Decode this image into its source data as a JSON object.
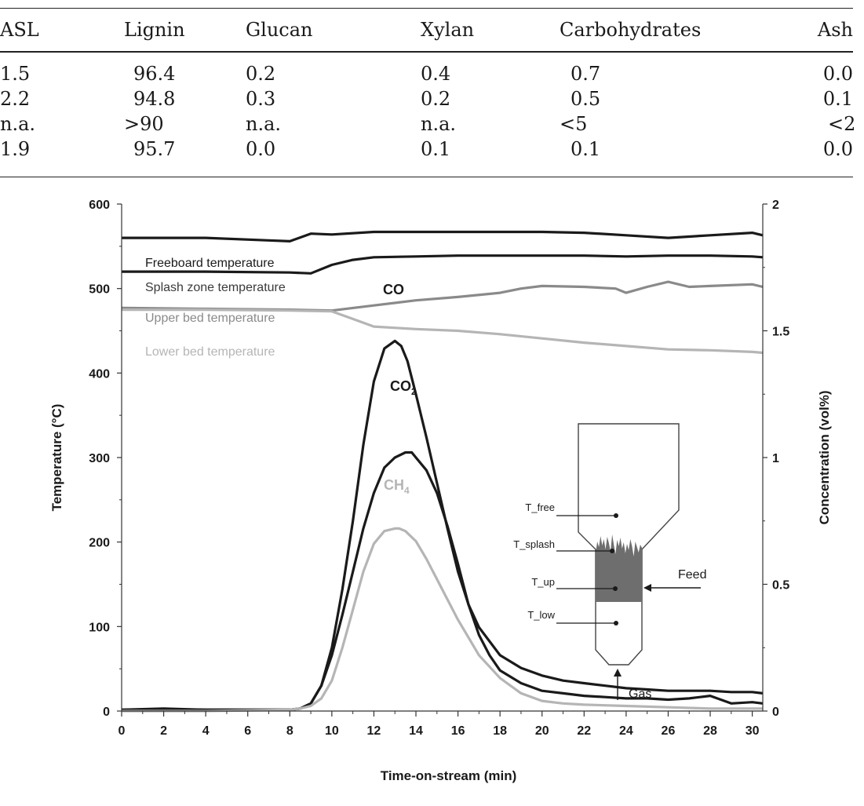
{
  "table": {
    "headers": [
      "ASL",
      "Lignin",
      "Glucan",
      "Xylan",
      "Carbohydrates",
      "Ash"
    ],
    "rows": [
      [
        "1.5",
        "96.4",
        "0.2",
        "0.4",
        "0.7",
        "0.0"
      ],
      [
        "2.2",
        "94.8",
        "0.3",
        "0.2",
        "0.5",
        "0.1"
      ],
      [
        "n.a.",
        ">90",
        "n.a.",
        "n.a.",
        "<5",
        "<2"
      ],
      [
        "1.9",
        "95.7",
        "0.0",
        "0.1",
        "0.1",
        "0.0"
      ]
    ]
  },
  "chart_data": {
    "type": "line",
    "title": "",
    "xlabel": "Time-on-stream (min)",
    "ylabel": "Temperature (°C)",
    "y2label": "Concentration (vol%)",
    "xlim": [
      0,
      30.5
    ],
    "ylim": [
      0,
      600
    ],
    "y2lim": [
      0,
      2
    ],
    "x_ticks": [
      0,
      2,
      4,
      6,
      8,
      10,
      12,
      14,
      16,
      18,
      20,
      22,
      24,
      26,
      28,
      30
    ],
    "y_ticks": [
      0,
      100,
      200,
      300,
      400,
      500,
      600
    ],
    "y2_ticks": [
      "0",
      "0.5",
      "1",
      "1.5",
      "2"
    ],
    "temperature_series": [
      {
        "name": "Freeboard temperature",
        "axis": "left",
        "color": "#1a1a1a",
        "x": [
          0,
          4,
          7,
          8,
          9,
          10,
          12,
          14,
          16,
          18,
          20,
          22,
          24,
          26,
          28,
          30,
          30.5
        ],
        "y": [
          560,
          560,
          557,
          556,
          565,
          564,
          567,
          567,
          567,
          567,
          567,
          566,
          563,
          560,
          563,
          566,
          563
        ]
      },
      {
        "name": "Splash zone temperature",
        "axis": "left",
        "color": "#1a1a1a",
        "x": [
          0,
          4,
          8,
          9,
          10,
          11,
          12,
          14,
          16,
          18,
          20,
          22,
          24,
          26,
          28,
          30,
          30.5
        ],
        "y": [
          520,
          520,
          519,
          518,
          528,
          534,
          537,
          538,
          539,
          539,
          539,
          539,
          538,
          539,
          539,
          538,
          537
        ]
      },
      {
        "name": "Upper bed temperature",
        "axis": "left",
        "color": "#8a8a8a",
        "x": [
          0,
          4,
          8,
          10,
          12,
          14,
          16,
          18,
          19,
          20,
          22,
          23.5,
          24,
          25,
          26,
          27,
          28,
          30,
          30.5
        ],
        "y": [
          477,
          476,
          475,
          474,
          480,
          486,
          490,
          495,
          500,
          503,
          502,
          500,
          495,
          502,
          508,
          502,
          503,
          505,
          502
        ]
      },
      {
        "name": "Lower bed temperature",
        "axis": "left",
        "color": "#b5b5b5",
        "x": [
          0,
          4,
          8,
          10,
          11,
          12,
          14,
          16,
          18,
          20,
          22,
          24,
          26,
          28,
          30,
          30.5
        ],
        "y": [
          475,
          475,
          474,
          473,
          464,
          455,
          452,
          450,
          446,
          441,
          436,
          432,
          428,
          427,
          425,
          424
        ]
      }
    ],
    "gas_series": [
      {
        "name": "CO",
        "axis": "right",
        "color": "#1a1a1a",
        "x": [
          0,
          2,
          4,
          6,
          8,
          8.5,
          9,
          9.5,
          10,
          10.5,
          11,
          11.5,
          12,
          12.5,
          13,
          13.3,
          13.6,
          14,
          14.5,
          15,
          15.5,
          16,
          16.5,
          17,
          18,
          19,
          20,
          21,
          22,
          23,
          24,
          25,
          26,
          27,
          28,
          29,
          30,
          30.5
        ],
        "y": [
          0.005,
          0.01,
          0.005,
          0.005,
          0.005,
          0.01,
          0.03,
          0.1,
          0.25,
          0.48,
          0.75,
          1.05,
          1.3,
          1.43,
          1.46,
          1.44,
          1.38,
          1.25,
          1.08,
          0.9,
          0.72,
          0.55,
          0.42,
          0.33,
          0.22,
          0.17,
          0.14,
          0.12,
          0.11,
          0.1,
          0.09,
          0.085,
          0.08,
          0.08,
          0.08,
          0.075,
          0.075,
          0.07
        ]
      },
      {
        "name": "CO2",
        "axis": "right",
        "color": "#1a1a1a",
        "x": [
          0,
          4,
          8,
          8.5,
          9,
          9.5,
          10,
          10.5,
          11,
          11.5,
          12,
          12.5,
          13,
          13.5,
          13.8,
          14,
          14.5,
          15,
          15.5,
          16,
          16.5,
          17,
          17.5,
          18,
          19,
          20,
          21,
          22,
          23,
          24,
          25,
          26,
          27,
          28,
          29,
          30,
          30.5
        ],
        "y": [
          0.005,
          0.005,
          0.005,
          0.01,
          0.03,
          0.1,
          0.22,
          0.38,
          0.55,
          0.72,
          0.86,
          0.96,
          1.0,
          1.02,
          1.02,
          1.0,
          0.95,
          0.86,
          0.73,
          0.58,
          0.42,
          0.3,
          0.22,
          0.16,
          0.11,
          0.08,
          0.07,
          0.06,
          0.055,
          0.05,
          0.05,
          0.045,
          0.05,
          0.06,
          0.03,
          0.035,
          0.03
        ]
      },
      {
        "name": "CH4",
        "axis": "right",
        "color": "#b5b5b5",
        "x": [
          0,
          4,
          8,
          8.5,
          9,
          9.5,
          10,
          10.5,
          11,
          11.5,
          12,
          12.5,
          13,
          13.2,
          13.5,
          14,
          14.5,
          15,
          15.5,
          16,
          16.5,
          17,
          18,
          19,
          20,
          21,
          22,
          24,
          26,
          28,
          30,
          30.5
        ],
        "y": [
          0.0,
          0.0,
          0.005,
          0.01,
          0.02,
          0.05,
          0.12,
          0.25,
          0.4,
          0.55,
          0.66,
          0.71,
          0.72,
          0.72,
          0.71,
          0.67,
          0.6,
          0.52,
          0.44,
          0.36,
          0.29,
          0.22,
          0.13,
          0.07,
          0.04,
          0.03,
          0.025,
          0.02,
          0.015,
          0.01,
          0.01,
          0.01
        ]
      }
    ],
    "annotations": {
      "co_label": "CO",
      "co2_label": "CO",
      "co2_sub": "2",
      "ch4_label": "CH",
      "ch4_sub": "4"
    },
    "reactor": {
      "labels": [
        "T_free",
        "T_splash",
        "T_up",
        "T_low"
      ],
      "feed": "Feed",
      "gas": "Gas"
    },
    "grid": false,
    "legend": "none"
  }
}
